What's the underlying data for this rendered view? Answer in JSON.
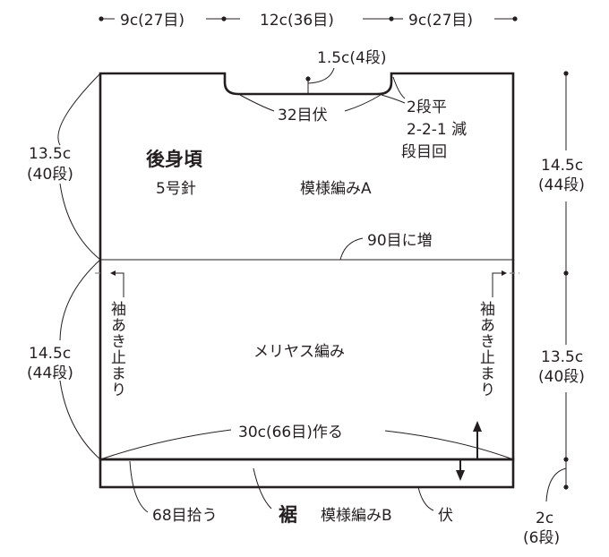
{
  "title": "後身頃",
  "needle": "5号針",
  "top_widths": [
    "9c(27目)",
    "12c(36目)",
    "9c(27目)"
  ],
  "neck": {
    "depth": "1.5c(4段)",
    "bind_off": "32目伏",
    "decrease_lines": [
      "2段平",
      "2-2-1 減",
      "段目回"
    ]
  },
  "upper_pattern": "模様編みA",
  "increase": "90目に増",
  "lower_pattern": "メリヤス編み",
  "sleeve_opening": "袖あき止まり",
  "cast_on": "30c(66目)作る",
  "left_dims": {
    "upper": [
      "13.5c",
      "(40段)"
    ],
    "lower": [
      "14.5c",
      "(44段)"
    ]
  },
  "right_dims": {
    "upper": [
      "14.5c",
      "(44段)"
    ],
    "lower": [
      "13.5c",
      "(40段)"
    ],
    "hem": [
      "2c",
      "(6段)"
    ]
  },
  "hem": {
    "pick_up": "68目拾う",
    "title": "裾",
    "pattern": "模様編みB",
    "bind_off": "伏"
  }
}
